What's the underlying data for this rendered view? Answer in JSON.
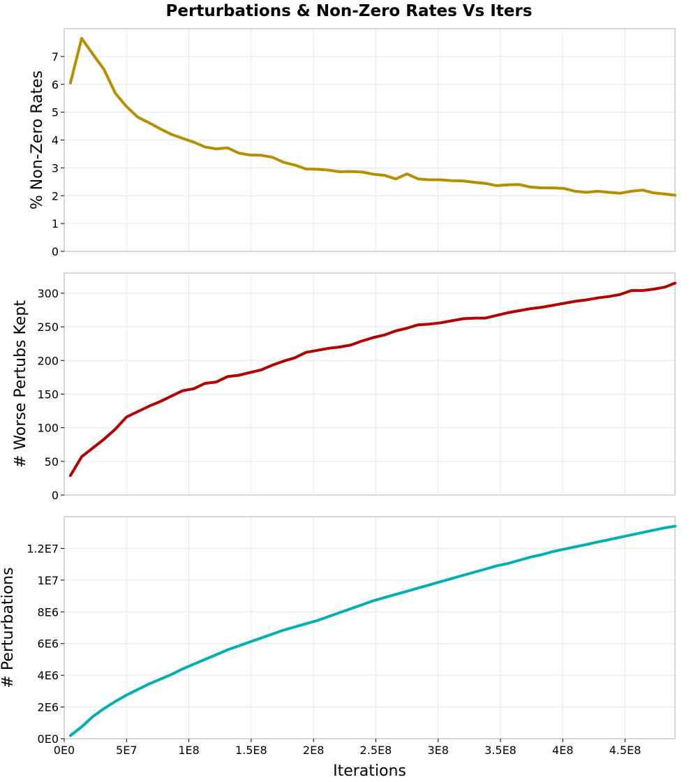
{
  "title": "Perturbations & Non-Zero Rates Vs Iters",
  "chart_data": [
    {
      "type": "line",
      "ylabel": "% Non-Zero Rates",
      "xlabel": "",
      "xlim": [
        0,
        490000000
      ],
      "ylim": [
        0,
        8
      ],
      "y_ticks": [
        0,
        1,
        2,
        3,
        4,
        5,
        6,
        7
      ],
      "y_tick_labels": [
        "0",
        "1",
        "2",
        "3",
        "4",
        "5",
        "6",
        "7"
      ],
      "color": "#b58f00",
      "grid": true,
      "x": [
        5000000,
        14000000,
        23000000,
        32000000,
        41000000,
        50000000,
        59000000,
        68000000,
        77000000,
        86000000,
        95000000,
        104000000,
        113000000,
        122000000,
        131000000,
        140000000,
        149000000,
        158000000,
        167000000,
        176000000,
        185000000,
        194000000,
        203000000,
        212000000,
        221000000,
        230000000,
        239000000,
        248000000,
        257000000,
        266000000,
        275000000,
        284000000,
        293000000,
        302000000,
        311000000,
        320000000,
        329000000,
        338000000,
        347000000,
        356000000,
        365000000,
        374000000,
        383000000,
        392000000,
        401000000,
        410000000,
        419000000,
        428000000,
        437000000,
        446000000,
        455000000,
        464000000,
        473000000,
        482000000,
        490000000
      ],
      "values": [
        6.05,
        7.65,
        7.08,
        6.53,
        5.68,
        5.2,
        4.82,
        4.62,
        4.4,
        4.2,
        4.06,
        3.92,
        3.75,
        3.68,
        3.72,
        3.53,
        3.46,
        3.45,
        3.38,
        3.2,
        3.1,
        2.96,
        2.95,
        2.92,
        2.86,
        2.87,
        2.85,
        2.77,
        2.73,
        2.6,
        2.78,
        2.6,
        2.57,
        2.57,
        2.54,
        2.53,
        2.48,
        2.44,
        2.36,
        2.39,
        2.4,
        2.31,
        2.28,
        2.28,
        2.26,
        2.16,
        2.12,
        2.16,
        2.12,
        2.09,
        2.16,
        2.2,
        2.1,
        2.06,
        2.02
      ]
    },
    {
      "type": "line",
      "ylabel": "# Worse Pertubs Kept",
      "xlabel": "",
      "xlim": [
        0,
        490000000
      ],
      "ylim": [
        0,
        330
      ],
      "y_ticks": [
        0,
        50,
        100,
        150,
        200,
        250,
        300
      ],
      "y_tick_labels": [
        "0",
        "50",
        "100",
        "150",
        "200",
        "250",
        "300"
      ],
      "color": "#b00000",
      "grid": true,
      "x": [
        5000000,
        14000000,
        23000000,
        32000000,
        41000000,
        50000000,
        59000000,
        68000000,
        77000000,
        86000000,
        95000000,
        104000000,
        113000000,
        122000000,
        131000000,
        140000000,
        149000000,
        158000000,
        167000000,
        176000000,
        185000000,
        194000000,
        203000000,
        212000000,
        221000000,
        230000000,
        239000000,
        248000000,
        257000000,
        266000000,
        275000000,
        284000000,
        293000000,
        302000000,
        311000000,
        320000000,
        329000000,
        338000000,
        347000000,
        356000000,
        365000000,
        374000000,
        383000000,
        392000000,
        401000000,
        410000000,
        419000000,
        428000000,
        437000000,
        446000000,
        455000000,
        464000000,
        473000000,
        482000000,
        490000000
      ],
      "values": [
        29,
        57,
        70,
        83,
        98,
        116,
        124,
        132,
        139,
        147,
        155,
        158,
        166,
        168,
        176,
        178,
        182,
        186,
        193,
        199,
        204,
        212,
        215,
        218,
        220,
        223,
        229,
        234,
        238,
        244,
        248,
        253,
        254,
        256,
        259,
        262,
        263,
        263,
        267,
        271,
        274,
        277,
        279,
        282,
        285,
        288,
        290,
        293,
        295,
        298,
        304,
        304,
        306,
        309,
        315
      ]
    },
    {
      "type": "line",
      "ylabel": "# Perturbations",
      "xlabel": "Iterations",
      "xlim": [
        0,
        490000000
      ],
      "ylim": [
        0,
        14000000
      ],
      "x_ticks": [
        0,
        50000000,
        100000000,
        150000000,
        200000000,
        250000000,
        300000000,
        350000000,
        400000000,
        450000000
      ],
      "x_tick_labels": [
        "0E0",
        "5E7",
        "1E8",
        "1.5E8",
        "2E8",
        "2.5E8",
        "3E8",
        "3.5E8",
        "4E8",
        "4.5E8"
      ],
      "y_ticks": [
        0,
        2000000,
        4000000,
        6000000,
        8000000,
        10000000,
        12000000
      ],
      "y_tick_labels": [
        "0E0",
        "2E6",
        "4E6",
        "6E6",
        "8E6",
        "1E7",
        "1.2E7"
      ],
      "color": "#00b0b0",
      "grid": true,
      "x": [
        5000000,
        14000000,
        23000000,
        32000000,
        41000000,
        50000000,
        59000000,
        68000000,
        77000000,
        86000000,
        95000000,
        104000000,
        113000000,
        122000000,
        131000000,
        140000000,
        149000000,
        158000000,
        167000000,
        176000000,
        185000000,
        194000000,
        203000000,
        212000000,
        221000000,
        230000000,
        239000000,
        248000000,
        257000000,
        266000000,
        275000000,
        284000000,
        293000000,
        302000000,
        311000000,
        320000000,
        329000000,
        338000000,
        347000000,
        356000000,
        365000000,
        374000000,
        383000000,
        392000000,
        401000000,
        410000000,
        419000000,
        428000000,
        437000000,
        446000000,
        455000000,
        464000000,
        473000000,
        482000000,
        490000000
      ],
      "values": [
        200000,
        750000,
        1400000,
        1900000,
        2350000,
        2750000,
        3100000,
        3450000,
        3750000,
        4050000,
        4400000,
        4700000,
        5000000,
        5300000,
        5600000,
        5850000,
        6100000,
        6350000,
        6600000,
        6850000,
        7050000,
        7250000,
        7450000,
        7700000,
        7950000,
        8200000,
        8450000,
        8700000,
        8900000,
        9100000,
        9300000,
        9500000,
        9700000,
        9900000,
        10100000,
        10300000,
        10500000,
        10700000,
        10900000,
        11050000,
        11250000,
        11450000,
        11600000,
        11800000,
        11950000,
        12100000,
        12250000,
        12400000,
        12550000,
        12700000,
        12850000,
        13000000,
        13150000,
        13300000,
        13400000
      ]
    }
  ]
}
